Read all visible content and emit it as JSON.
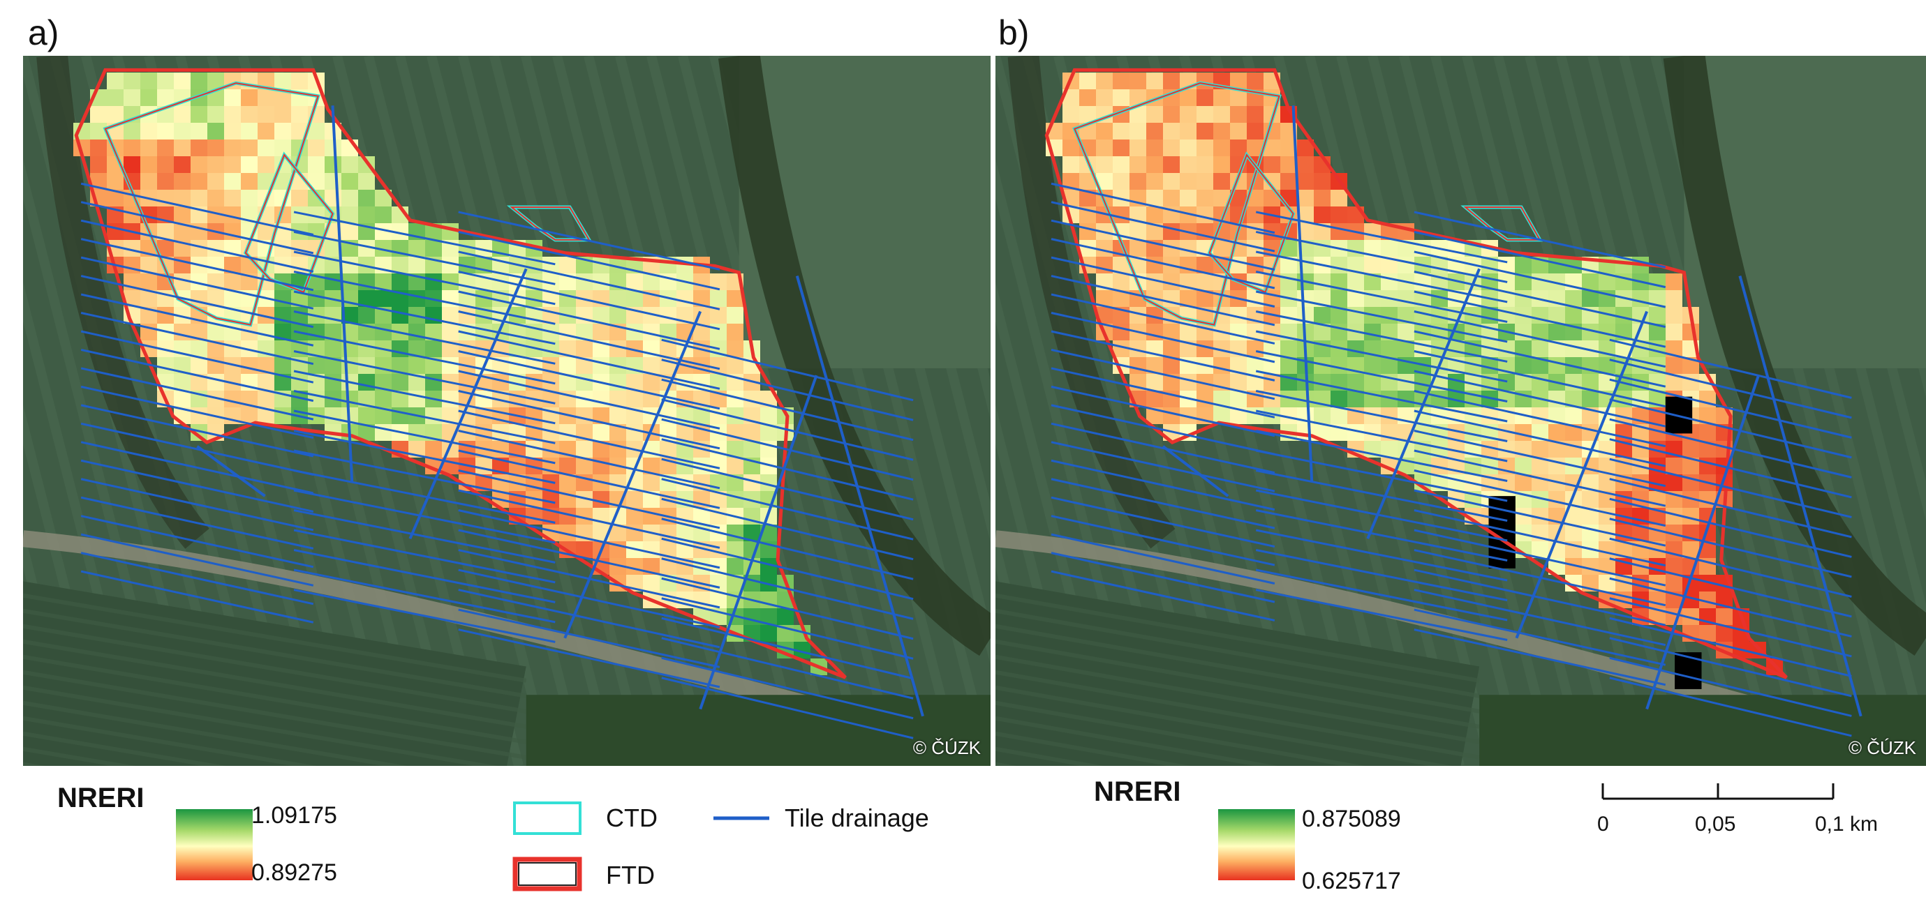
{
  "panels": [
    {
      "label": "a)",
      "legend": {
        "title": "NRERI",
        "max": "1.09175",
        "min": "0.89275"
      }
    },
    {
      "label": "b)",
      "legend": {
        "title": "NRERI",
        "max": "0.875089",
        "min": "0.625717"
      }
    }
  ],
  "copyright": "© ČÚZK",
  "key": {
    "ctd": "CTD",
    "ftd": "FTD",
    "tile_drainage": "Tile drainage"
  },
  "scale": {
    "l0": "0",
    "l1": "0,05",
    "l2": "0,1 km"
  },
  "colors": {
    "ramp": [
      "#1a9641",
      "#a6d96a",
      "#ffffbf",
      "#fdae61",
      "#e8321f"
    ],
    "drainage": "#1f5fc8",
    "ctd": "#33e0d6",
    "ftd": "#e8322c",
    "masked": "#000000"
  }
}
